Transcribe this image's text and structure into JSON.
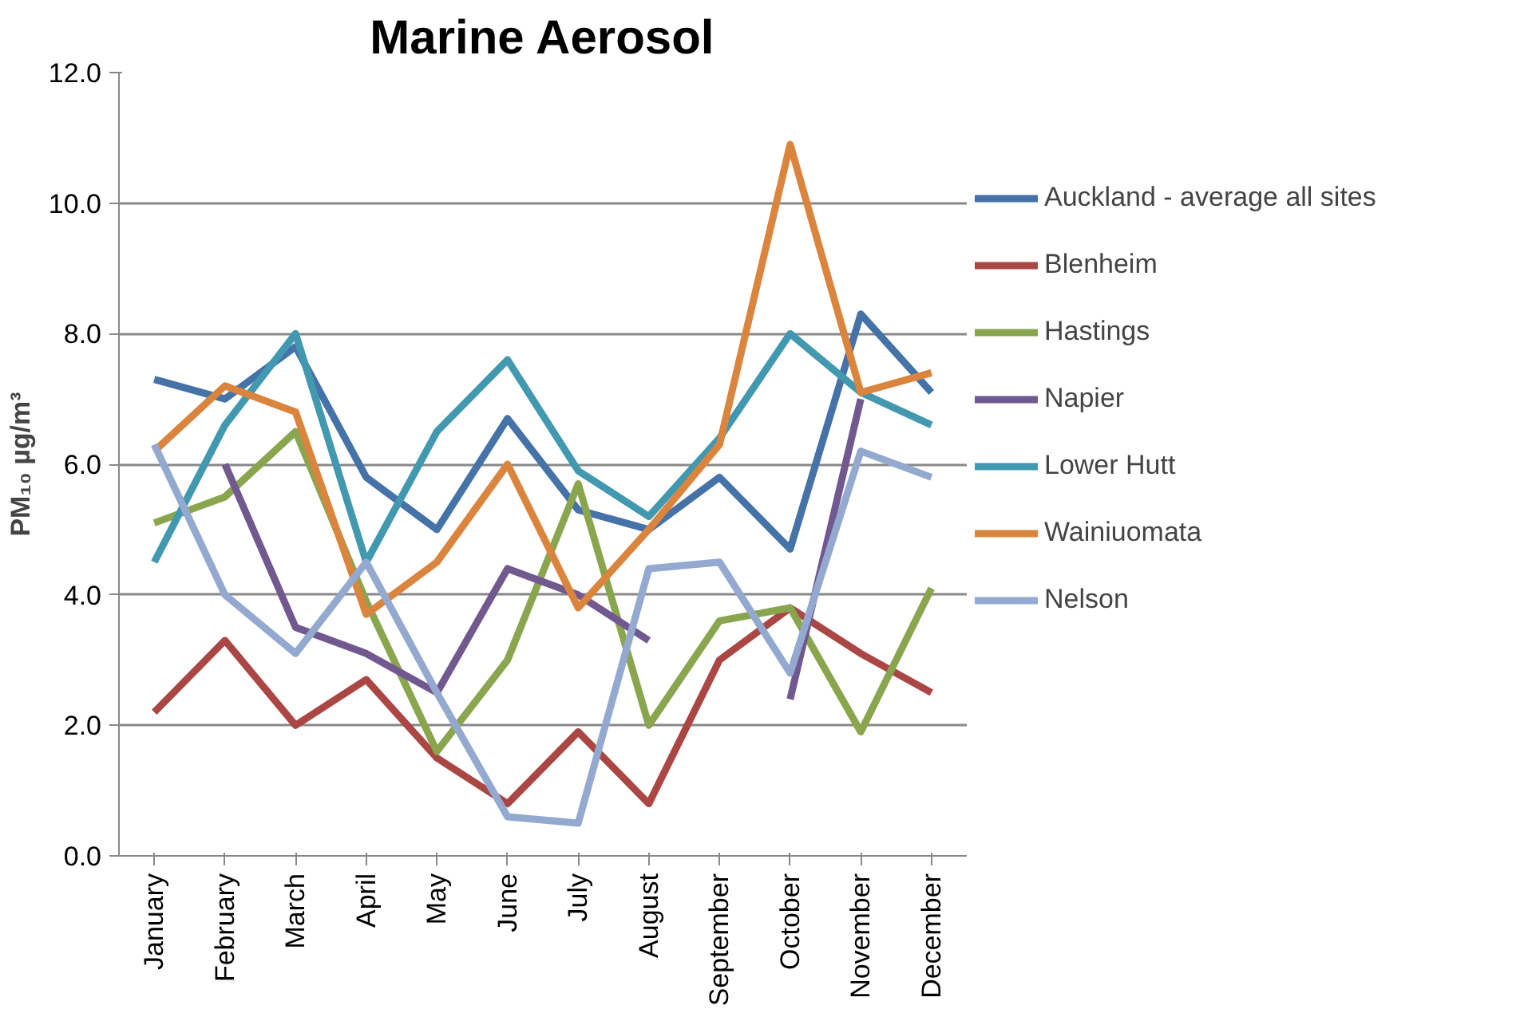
{
  "chart_data": {
    "type": "line",
    "title": "Marine Aerosol",
    "ylabel": "PM₁₀ µg/m³",
    "categories": [
      "January",
      "February",
      "March",
      "April",
      "May",
      "June",
      "July",
      "August",
      "September",
      "October",
      "November",
      "December"
    ],
    "series": [
      {
        "name": "Auckland - average all sites",
        "color": "#4572a7",
        "values": [
          7.3,
          7.0,
          7.8,
          5.8,
          5.0,
          6.7,
          5.3,
          5.0,
          5.8,
          4.7,
          8.3,
          7.1
        ]
      },
      {
        "name": "Blenheim",
        "color": "#aa4643",
        "values": [
          2.2,
          3.3,
          2.0,
          2.7,
          1.5,
          0.8,
          1.9,
          0.8,
          3.0,
          3.8,
          3.1,
          2.5
        ]
      },
      {
        "name": "Hastings",
        "color": "#89a54e",
        "values": [
          5.1,
          5.5,
          6.5,
          3.9,
          1.6,
          3.0,
          5.7,
          2.0,
          3.6,
          3.8,
          1.9,
          4.1
        ]
      },
      {
        "name": "Napier",
        "color": "#71588f",
        "values": [
          null,
          6.0,
          3.5,
          3.1,
          2.5,
          4.4,
          4.0,
          3.3,
          null,
          2.4,
          7.0,
          null
        ]
      },
      {
        "name": "Lower Hutt",
        "color": "#4198af",
        "values": [
          4.5,
          6.6,
          8.0,
          4.5,
          6.5,
          7.6,
          5.9,
          5.2,
          6.4,
          8.0,
          7.1,
          6.6
        ]
      },
      {
        "name": "Wainiuomata",
        "color": "#db843d",
        "values": [
          6.2,
          7.2,
          6.8,
          3.7,
          4.5,
          6.0,
          3.8,
          5.0,
          6.3,
          10.9,
          7.1,
          7.4
        ]
      },
      {
        "name": "Nelson",
        "color": "#93a9cf",
        "values": [
          6.3,
          4.0,
          3.1,
          4.5,
          2.5,
          0.6,
          0.5,
          4.4,
          4.5,
          2.8,
          6.2,
          5.8
        ]
      }
    ],
    "ylim": [
      0,
      12
    ],
    "yticks": [
      {
        "value": 0,
        "label": "0.0"
      },
      {
        "value": 2,
        "label": "2.0"
      },
      {
        "value": 4,
        "label": "4.0"
      },
      {
        "value": 6,
        "label": "6.0"
      },
      {
        "value": 8,
        "label": "8.0"
      },
      {
        "value": 10,
        "label": "10.0"
      },
      {
        "value": 12,
        "label": "12.0"
      }
    ],
    "grid": "y",
    "legend": "right",
    "marker": "none",
    "line_style": "solid"
  }
}
